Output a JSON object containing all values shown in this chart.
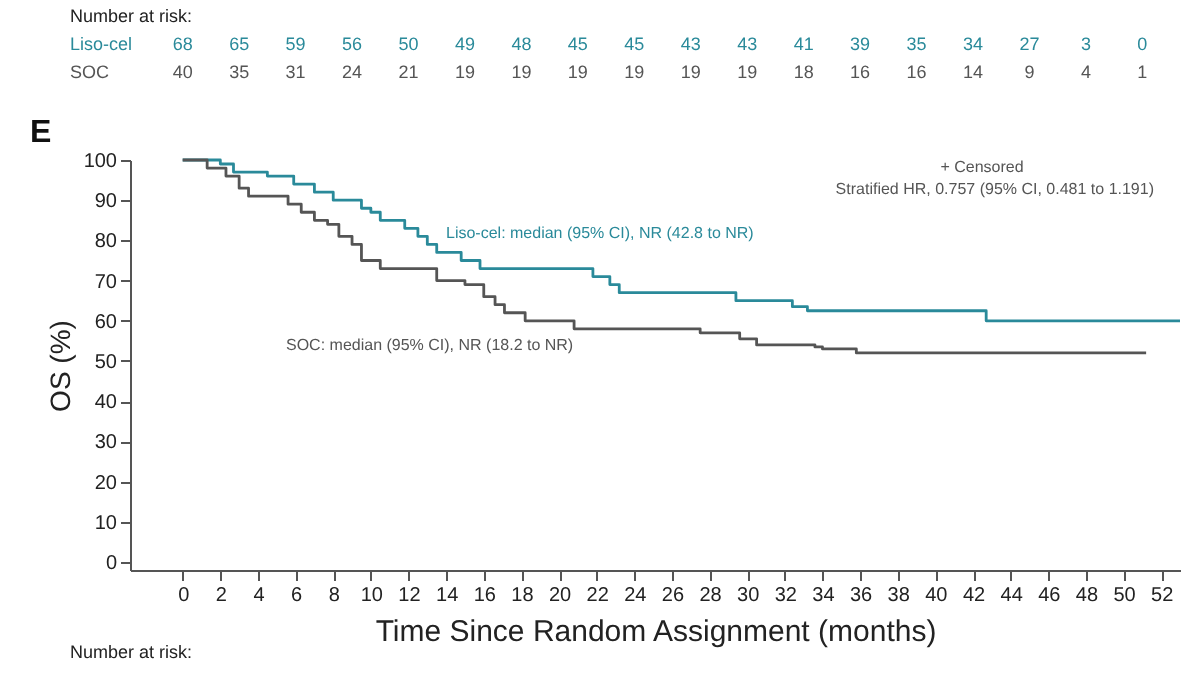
{
  "chart_data": {
    "type": "step",
    "xlabel": "Time Since Random Assignment (months)",
    "ylabel": "OS (%)",
    "xlim": [
      -2.8,
      53
    ],
    "ylim": [
      -2,
      100
    ],
    "xticks": [
      0,
      2,
      4,
      6,
      8,
      10,
      12,
      14,
      16,
      18,
      20,
      22,
      24,
      26,
      28,
      30,
      32,
      34,
      36,
      38,
      40,
      42,
      44,
      46,
      48,
      50,
      52
    ],
    "yticks": [
      0,
      10,
      20,
      30,
      40,
      50,
      60,
      70,
      80,
      90,
      100
    ],
    "series": [
      {
        "name": "Liso-cel",
        "color": "#2a8a9a",
        "x": [
          0,
          2.0,
          2.7,
          4.5,
          5.9,
          7.0,
          8.0,
          9.5,
          10.0,
          10.5,
          11.8,
          12.5,
          13.0,
          13.5,
          14.8,
          15.8,
          21.8,
          22.7,
          23.2,
          29.4,
          32.4,
          33.2,
          42.7,
          53
        ],
        "values": [
          100,
          99,
          97,
          96,
          94,
          92,
          90,
          88,
          87,
          85,
          83,
          81,
          79,
          77,
          75,
          73,
          71,
          69,
          67,
          65,
          63.5,
          62.5,
          60,
          60
        ]
      },
      {
        "name": "SOC",
        "color": "#555555",
        "x": [
          0,
          1.3,
          2.3,
          3.0,
          3.5,
          5.6,
          6.3,
          7.0,
          7.7,
          8.3,
          9.0,
          9.5,
          10.5,
          13.5,
          15.0,
          16.0,
          16.6,
          17.1,
          18.2,
          20.8,
          27.5,
          29.6,
          30.5,
          33.6,
          34.0,
          35.8,
          51.2
        ],
        "values": [
          100,
          98,
          96,
          93,
          91,
          89,
          87,
          85,
          84,
          81,
          79,
          75,
          73,
          70,
          69,
          66,
          64,
          62,
          60,
          58,
          57,
          55.5,
          54,
          53.5,
          53,
          52,
          52
        ]
      }
    ],
    "annotations": [
      "Number at risk:",
      "68 65 59 56 50 49 48 45 45 43 43 41 39 35 34 27 3 0",
      "40 35 31 24 21 19 19 19 19 19 19 18 16 16 14 9 4 1",
      "E",
      "+ Censored",
      "Stratified HR, 0.757 (95% CI, 0.481 to 1.191)",
      "Liso-cel: median (95% CI), NR (42.8 to NR)",
      "SOC: median (95% CI), NR (18.2 to NR)",
      "Number at risk:"
    ]
  }
}
